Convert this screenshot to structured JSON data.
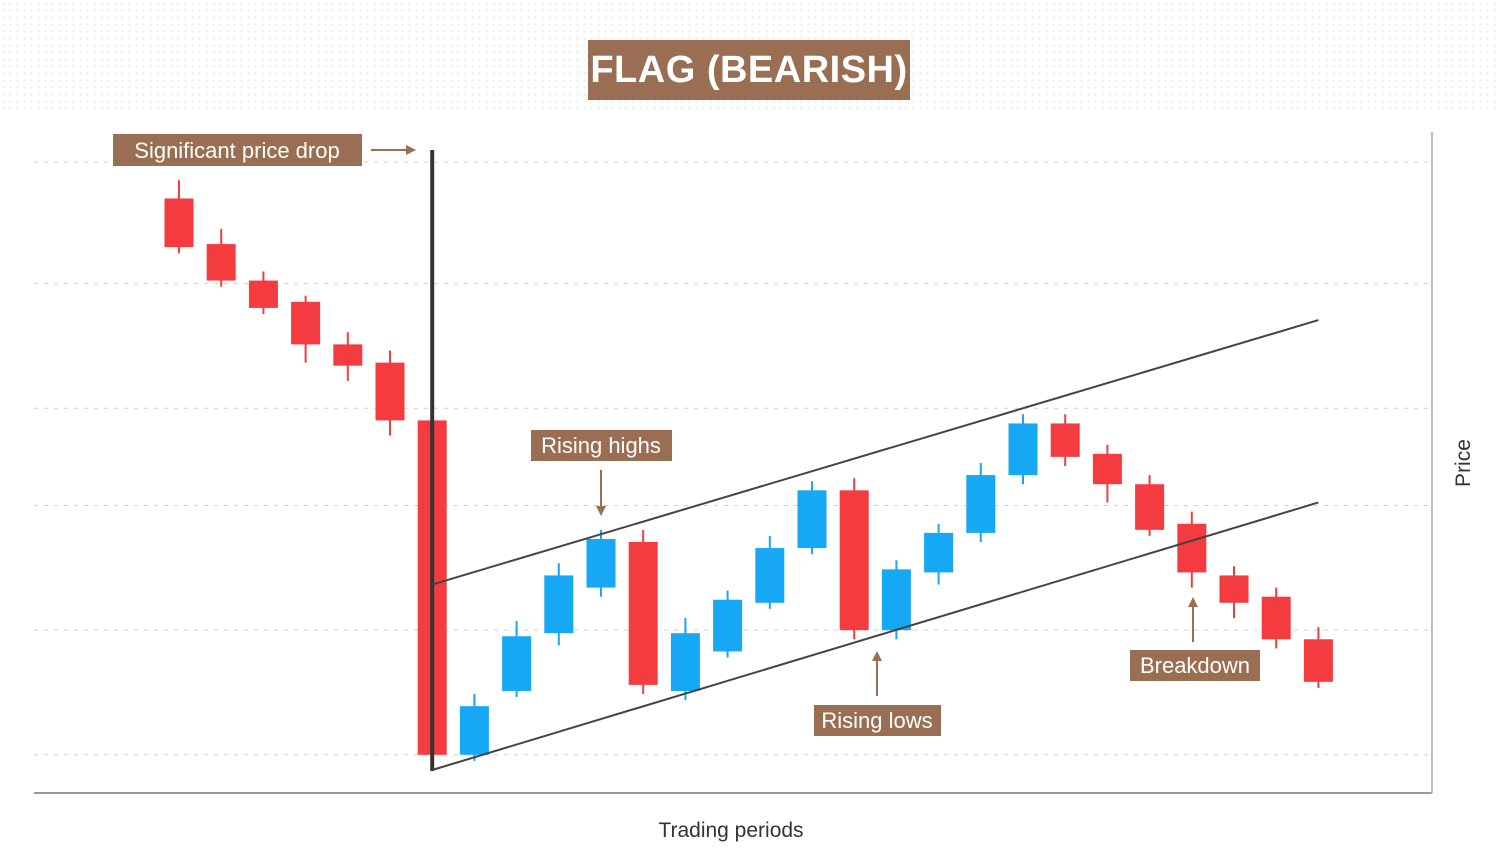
{
  "title": "FLAG (BEARISH)",
  "colors": {
    "bearish": "#f43b3f",
    "bullish": "#16a8f4",
    "annotation_bg": "#9a6e52",
    "channel_line": "#444444",
    "grid": "#d0d0d0"
  },
  "chart_data": {
    "type": "candlestick",
    "title": "FLAG (BEARISH)",
    "xlabel": "Trading periods",
    "ylabel": "Price",
    "ylim": [
      0,
      100
    ],
    "grid": "horizontal dashed",
    "candles": [
      {
        "x": 1,
        "open": 94,
        "close": 86,
        "high": 97,
        "low": 85,
        "dir": "down"
      },
      {
        "x": 2,
        "open": 86.5,
        "close": 80.5,
        "high": 89,
        "low": 79.5,
        "dir": "down"
      },
      {
        "x": 3,
        "open": 80.5,
        "close": 76,
        "high": 82,
        "low": 75,
        "dir": "down"
      },
      {
        "x": 4,
        "open": 77,
        "close": 70,
        "high": 78,
        "low": 67,
        "dir": "down"
      },
      {
        "x": 5,
        "open": 70,
        "close": 66.5,
        "high": 72,
        "low": 64,
        "dir": "down"
      },
      {
        "x": 6,
        "open": 67,
        "close": 57.5,
        "high": 69,
        "low": 55,
        "dir": "down"
      },
      {
        "x": 7,
        "open": 57.5,
        "close": 2.5,
        "high": 57.5,
        "low": 2.5,
        "dir": "down"
      },
      {
        "x": 8,
        "open": 2.5,
        "close": 10.5,
        "high": 12.5,
        "low": 1.5,
        "dir": "up"
      },
      {
        "x": 9,
        "open": 13,
        "close": 22,
        "high": 24.5,
        "low": 12,
        "dir": "up"
      },
      {
        "x": 10,
        "open": 22.5,
        "close": 32,
        "high": 34,
        "low": 20.5,
        "dir": "up"
      },
      {
        "x": 11,
        "open": 30,
        "close": 38,
        "high": 39.5,
        "low": 28.5,
        "dir": "up"
      },
      {
        "x": 12,
        "open": 37.5,
        "close": 14,
        "high": 39.5,
        "low": 12.5,
        "dir": "down"
      },
      {
        "x": 13,
        "open": 13,
        "close": 22.5,
        "high": 25,
        "low": 11.5,
        "dir": "up"
      },
      {
        "x": 14,
        "open": 19.5,
        "close": 28,
        "high": 29.5,
        "low": 18.5,
        "dir": "up"
      },
      {
        "x": 15,
        "open": 27.5,
        "close": 36.5,
        "high": 38.5,
        "low": 26.5,
        "dir": "up"
      },
      {
        "x": 16,
        "open": 36.5,
        "close": 46,
        "high": 47.5,
        "low": 35.5,
        "dir": "up"
      },
      {
        "x": 17,
        "open": 46,
        "close": 23,
        "high": 48,
        "low": 21.5,
        "dir": "down"
      },
      {
        "x": 18,
        "open": 23,
        "close": 33,
        "high": 34.5,
        "low": 21.5,
        "dir": "up"
      },
      {
        "x": 19,
        "open": 32.5,
        "close": 39,
        "high": 40.5,
        "low": 30.5,
        "dir": "up"
      },
      {
        "x": 20,
        "open": 39,
        "close": 48.5,
        "high": 50.5,
        "low": 37.5,
        "dir": "up"
      },
      {
        "x": 21,
        "open": 48.5,
        "close": 57,
        "high": 58.5,
        "low": 47,
        "dir": "up"
      },
      {
        "x": 22,
        "open": 57,
        "close": 51.5,
        "high": 58.5,
        "low": 50,
        "dir": "down"
      },
      {
        "x": 23,
        "open": 52,
        "close": 47,
        "high": 53.5,
        "low": 44,
        "dir": "down"
      },
      {
        "x": 24,
        "open": 47,
        "close": 39.5,
        "high": 48.5,
        "low": 38.5,
        "dir": "down"
      },
      {
        "x": 25,
        "open": 40.5,
        "close": 32.5,
        "high": 42.5,
        "low": 30,
        "dir": "down"
      },
      {
        "x": 26,
        "open": 32,
        "close": 27.5,
        "high": 33.5,
        "low": 25,
        "dir": "down"
      },
      {
        "x": 27,
        "open": 28.5,
        "close": 21.5,
        "high": 30,
        "low": 20,
        "dir": "down"
      },
      {
        "x": 28,
        "open": 21.5,
        "close": 14.5,
        "high": 23.5,
        "low": 13.5,
        "dir": "down"
      }
    ],
    "flagpole_x": 7,
    "channel": {
      "upper": {
        "from": {
          "x": 7,
          "y": 30.5
        },
        "to": {
          "x": 28,
          "y": 74
        }
      },
      "lower": {
        "from": {
          "x": 7,
          "y": 0
        },
        "to": {
          "x": 28,
          "y": 44
        }
      }
    },
    "annotations": [
      {
        "text": "Significant price drop",
        "target_x": 7,
        "target_y": 100
      },
      {
        "text": "Rising highs",
        "target_x": 11,
        "target_y": 39.5
      },
      {
        "text": "Rising lows",
        "target_x": 18,
        "target_y": 19
      },
      {
        "text": "Breakdown",
        "target_x": 25,
        "target_y": 28.5
      }
    ]
  }
}
